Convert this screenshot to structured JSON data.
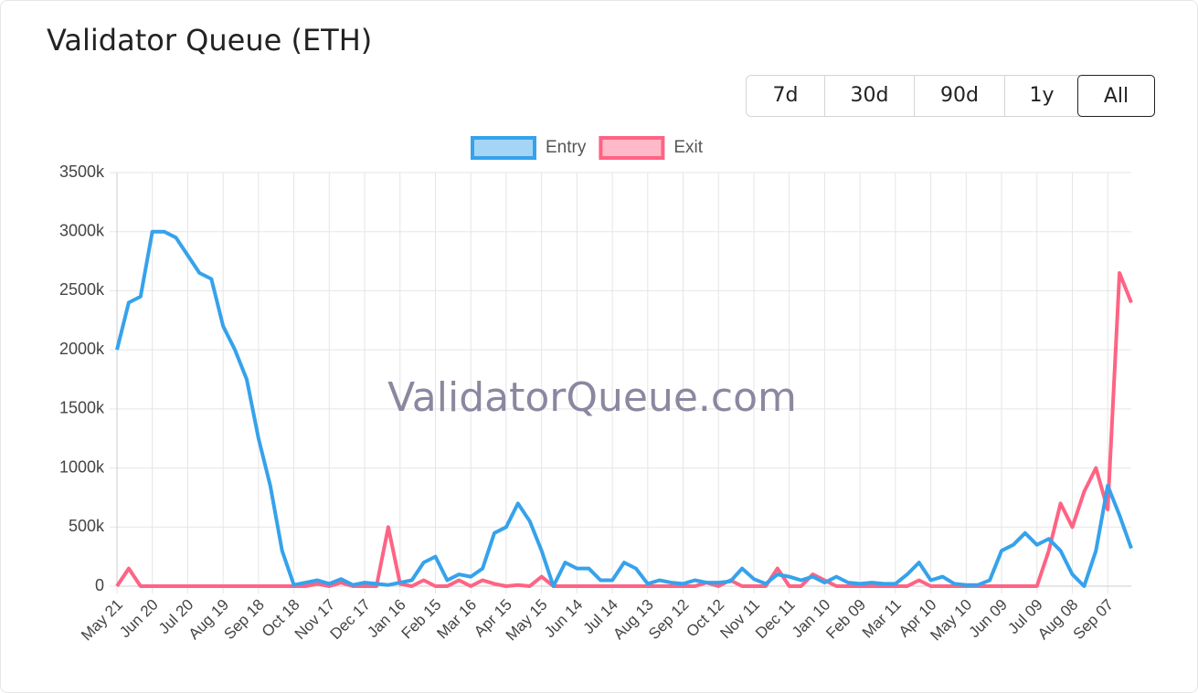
{
  "title": "Validator Queue (ETH)",
  "range_buttons": [
    "7d",
    "30d",
    "90d",
    "1y",
    "All"
  ],
  "selected_button": 4,
  "chart_data": {
    "type": "line",
    "watermark": "ValidatorQueue.com",
    "categories": [
      "May 21",
      null,
      null,
      "Jun 20",
      null,
      null,
      "Jul 20",
      null,
      null,
      "Aug 19",
      null,
      null,
      "Sep 18",
      null,
      null,
      "Oct 18",
      null,
      null,
      "Nov 17",
      null,
      null,
      "Dec 17",
      null,
      null,
      "Jan 16",
      null,
      null,
      "Feb 15",
      null,
      null,
      "Mar 16",
      null,
      null,
      "Apr 15",
      null,
      null,
      "May 15",
      null,
      null,
      "Jun 14",
      null,
      null,
      "Jul 14",
      null,
      null,
      "Aug 13",
      null,
      null,
      "Sep 12",
      null,
      null,
      "Oct 12",
      null,
      null,
      "Nov 11",
      null,
      null,
      "Dec 11",
      null,
      null,
      "Jan 10",
      null,
      null,
      "Feb 09",
      null,
      null,
      "Mar 11",
      null,
      null,
      "Apr 10",
      null,
      null,
      "May 10",
      null,
      null,
      "Jun 09",
      null,
      null,
      "Jul 09",
      null,
      null,
      "Aug 08",
      null,
      null,
      "Sep 07",
      null,
      null
    ],
    "series": [
      {
        "name": "Entry",
        "color": "#36a2eb",
        "values": [
          2000000,
          2400000,
          2450000,
          3000000,
          3000000,
          2950000,
          2800000,
          2650000,
          2600000,
          2200000,
          2000000,
          1750000,
          1250000,
          850000,
          300000,
          10000,
          30000,
          50000,
          20000,
          60000,
          10000,
          30000,
          20000,
          10000,
          30000,
          50000,
          200000,
          250000,
          50000,
          100000,
          80000,
          150000,
          450000,
          500000,
          700000,
          550000,
          300000,
          0,
          200000,
          150000,
          150000,
          50000,
          50000,
          200000,
          150000,
          20000,
          50000,
          30000,
          20000,
          50000,
          30000,
          30000,
          40000,
          150000,
          60000,
          20000,
          100000,
          80000,
          50000,
          80000,
          30000,
          80000,
          30000,
          20000,
          30000,
          20000,
          20000,
          100000,
          200000,
          50000,
          80000,
          20000,
          10000,
          10000,
          50000,
          300000,
          350000,
          450000,
          350000,
          400000,
          300000,
          100000,
          0,
          300000,
          850000,
          600000,
          320000
        ]
      },
      {
        "name": "Exit",
        "color": "#ff6384",
        "values": [
          0,
          150000,
          0,
          0,
          0,
          0,
          0,
          0,
          0,
          0,
          0,
          0,
          0,
          0,
          0,
          0,
          0,
          20000,
          0,
          30000,
          0,
          0,
          0,
          500000,
          20000,
          0,
          50000,
          0,
          0,
          50000,
          0,
          50000,
          20000,
          0,
          10000,
          0,
          80000,
          0,
          0,
          0,
          0,
          0,
          0,
          0,
          0,
          0,
          0,
          0,
          0,
          0,
          30000,
          0,
          50000,
          0,
          0,
          0,
          150000,
          0,
          0,
          100000,
          50000,
          0,
          0,
          0,
          0,
          0,
          0,
          0,
          50000,
          0,
          0,
          0,
          0,
          0,
          0,
          0,
          0,
          0,
          0,
          300000,
          700000,
          500000,
          800000,
          1000000,
          650000,
          2650000,
          2400000
        ]
      }
    ],
    "ylim": [
      0,
      3500000
    ],
    "yticks": [
      {
        "value": 0,
        "label": "0"
      },
      {
        "value": 500000,
        "label": "500k"
      },
      {
        "value": 1000000,
        "label": "1000k"
      },
      {
        "value": 1500000,
        "label": "1500k"
      },
      {
        "value": 2000000,
        "label": "2000k"
      },
      {
        "value": 2500000,
        "label": "2500k"
      },
      {
        "value": 3000000,
        "label": "3000k"
      },
      {
        "value": 3500000,
        "label": "3500k"
      }
    ],
    "grid": true,
    "legend": "top"
  }
}
